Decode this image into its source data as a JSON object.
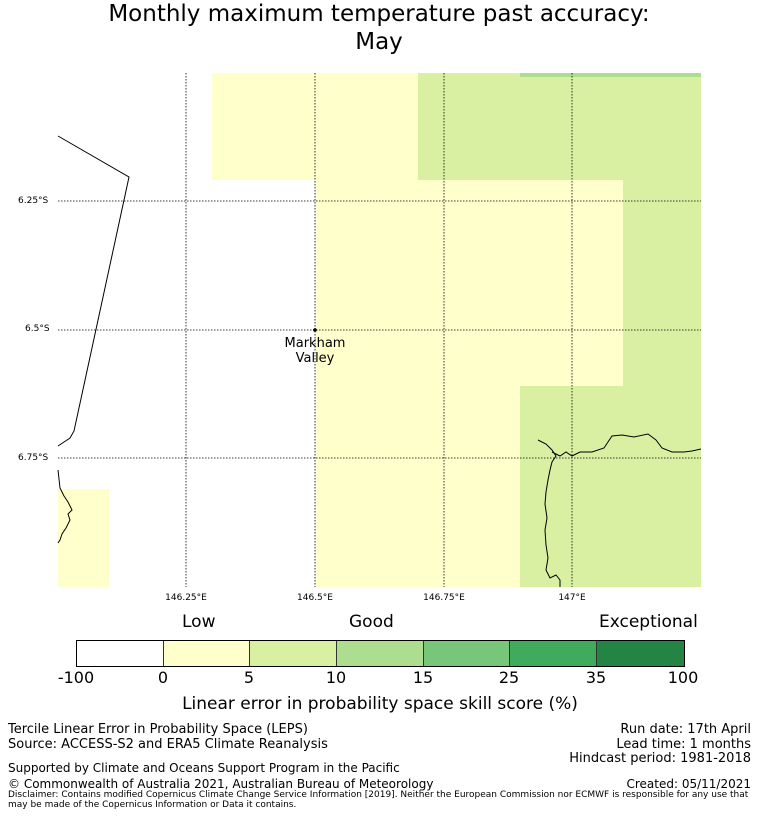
{
  "title": {
    "line1": "Monthly maximum temperature past accuracy:",
    "line2": "May"
  },
  "map": {
    "place": {
      "name_line1": "Markham",
      "name_line2": "Valley",
      "lon": 146.5,
      "lat": -6.5
    },
    "lat_labels": [
      "6.25°S",
      "6.5°S",
      "6.75°S"
    ],
    "lon_labels": [
      "146.25°E",
      "146.5°E",
      "146.75°E",
      "147°E"
    ],
    "skill_colors": {
      "low": "#ffffcc",
      "fair": "#d9f0a3",
      "moderate": "#addd8e"
    }
  },
  "colorbar": {
    "categories": [
      "Low",
      "Good",
      "Exceptional"
    ],
    "ticks": [
      "-100",
      "0",
      "5",
      "10",
      "15",
      "25",
      "35",
      "100"
    ],
    "colors": [
      "#ffffff",
      "#ffffcc",
      "#d9f0a3",
      "#addd8e",
      "#78c679",
      "#41ab5d",
      "#238443"
    ],
    "label": "Linear error in probability space skill score (%)"
  },
  "footer": {
    "left_line1": "Tercile Linear Error in Probability Space (LEPS)",
    "left_line2": "Source: ACCESS-S2 and ERA5 Climate Reanalysis",
    "support": "Supported by Climate and Oceans Support Program in the Pacific",
    "copyright": "© Commonwealth of Australia 2021, Australian Bureau of Meteorology",
    "run_date": "Run date: 17th April",
    "lead_time": "Lead time: 1 months",
    "hindcast": "Hindcast period: 1981-2018",
    "created": "Created: 05/11/2021",
    "disclaimer": "Disclaimer: Contains modified Copernicus Climate Change Service Information [2019]. Neither the European Commission nor ECMWF is responsible for any use that may be made of the Copernicus Information or Data it contains."
  }
}
